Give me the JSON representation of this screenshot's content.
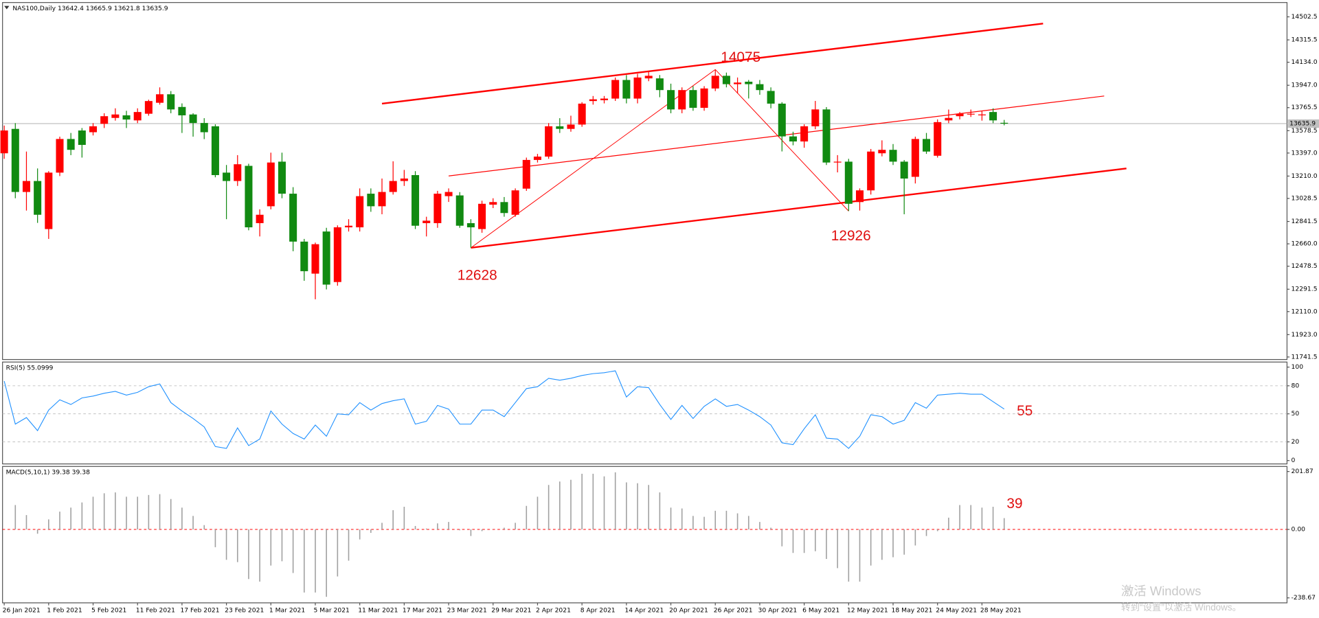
{
  "chart_data": [
    {
      "type": "candlestick",
      "title": "NAS100,Daily  13642.4 13665.9 13621.8 13635.9",
      "open": [
        13395,
        13593,
        13081,
        13170,
        12780,
        13238,
        13511,
        13580,
        13566,
        13634,
        13682,
        13703,
        13662,
        13716,
        13805,
        13874,
        13771,
        13710,
        13641,
        13614,
        13238,
        13170,
        13293,
        12828,
        12965,
        13327,
        13067,
        12678,
        12418,
        12760,
        12350,
        12794,
        12794,
        13067,
        12965,
        13081,
        13170,
        13218,
        12828,
        12828,
        13047,
        13053,
        12828,
        12780,
        12978,
        12999,
        12896,
        13108,
        13341,
        13368,
        13614,
        13593,
        13628,
        13819,
        13826,
        13839,
        13990,
        13839,
        14003,
        14003,
        13908,
        13751,
        13908,
        13764,
        13921,
        14024,
        13956,
        13976,
        13956,
        13901,
        13798,
        13532,
        13491,
        13614,
        13751,
        13320,
        13327,
        12999,
        13094,
        13395,
        13423,
        13327,
        13204,
        13511,
        13375,
        13662,
        13696,
        13710,
        13703,
        13730,
        13642.4
      ],
      "high": [
        13620,
        13640,
        13409,
        13272,
        13250,
        13530,
        13560,
        13600,
        13640,
        13720,
        13760,
        13740,
        13760,
        13830,
        13930,
        13900,
        13800,
        13720,
        13680,
        13630,
        13300,
        13380,
        13310,
        12940,
        13400,
        13400,
        13120,
        12700,
        12670,
        12790,
        12810,
        12860,
        13110,
        13110,
        13190,
        13330,
        13260,
        13250,
        12880,
        13090,
        13110,
        13080,
        12860,
        13010,
        13030,
        13040,
        13110,
        13360,
        13390,
        13640,
        13680,
        13700,
        13810,
        13860,
        13860,
        14010,
        14030,
        14040,
        14060,
        14030,
        13960,
        13930,
        13940,
        13940,
        14075,
        14050,
        14010,
        13990,
        13990,
        13930,
        13810,
        13570,
        13630,
        13820,
        13770,
        13380,
        13350,
        13110,
        13430,
        13500,
        13470,
        13340,
        13530,
        13560,
        13670,
        13750,
        13730,
        13750,
        13740,
        13760,
        13665.9
      ],
      "low": [
        13350,
        13030,
        12930,
        12830,
        12700,
        13210,
        13380,
        13360,
        13540,
        13600,
        13660,
        13600,
        13640,
        13700,
        13790,
        13720,
        13560,
        13530,
        13510,
        13200,
        12860,
        13130,
        12770,
        12720,
        12940,
        13030,
        12600,
        12360,
        12210,
        12290,
        12320,
        12760,
        12760,
        12920,
        12900,
        13060,
        13130,
        12780,
        12720,
        12790,
        13000,
        12790,
        12628,
        12750,
        12950,
        12880,
        12880,
        13090,
        13320,
        13350,
        13560,
        13570,
        13610,
        13790,
        13800,
        13820,
        13800,
        13800,
        13980,
        13850,
        13720,
        13720,
        13740,
        13740,
        13900,
        13930,
        13880,
        13840,
        13870,
        13760,
        13410,
        13460,
        13440,
        13590,
        13300,
        13240,
        12926,
        12930,
        13060,
        13370,
        13300,
        12900,
        13150,
        13390,
        13360,
        13640,
        13670,
        13690,
        13660,
        13640,
        13621.8
      ],
      "close": [
        13580,
        13081,
        13170,
        12896,
        13238,
        13511,
        13423,
        13463,
        13614,
        13696,
        13710,
        13669,
        13730,
        13819,
        13874,
        13751,
        13703,
        13641,
        13566,
        13218,
        13170,
        13306,
        12794,
        12896,
        13320,
        13067,
        12678,
        12438,
        12657,
        12329,
        12794,
        12807,
        13047,
        12965,
        13081,
        13170,
        13190,
        12807,
        12848,
        13067,
        13081,
        12807,
        12794,
        12985,
        12999,
        12910,
        13094,
        13341,
        13368,
        13614,
        13593,
        13628,
        13798,
        13833,
        13839,
        13990,
        13839,
        14010,
        14024,
        13908,
        13751,
        13908,
        13764,
        13921,
        14024,
        13956,
        13969,
        13956,
        13908,
        13798,
        13532,
        13491,
        13614,
        13751,
        13320,
        13327,
        12985,
        13094,
        13409,
        13423,
        13327,
        13190,
        13511,
        13409,
        13648,
        13682,
        13716,
        13716,
        13710,
        13662,
        13635.9
      ],
      "up_color": "#ff0000",
      "down_color": "#118a11",
      "ylim": [
        11721,
        14605
      ],
      "yticks": [
        14502.5,
        14315.5,
        {
          "value": 14134,
          "label": "14134.0"
        },
        {
          "value": 13947,
          "label": "13947.0"
        },
        13765.5,
        13578.5,
        {
          "value": 13397,
          "label": "13397.0"
        },
        {
          "value": 13210,
          "label": "13210.0"
        },
        13028.5,
        12841.5,
        {
          "value": 12660,
          "label": "12660.0"
        },
        12478.5,
        12291.5,
        {
          "value": 12110,
          "label": "12110.0"
        },
        {
          "value": 11923,
          "label": "11923.0"
        },
        11741.5
      ],
      "last_price": 13635.9,
      "grid": false,
      "trendlines": [
        {
          "points": [
            [
              34,
              13798
            ],
            [
              93.5,
              14448
            ]
          ],
          "width": 2,
          "color": "#ff0000"
        },
        {
          "points": [
            [
              40,
              13211
            ],
            [
              99,
              13860
            ]
          ],
          "width": 1,
          "color": "#ff0000"
        },
        {
          "points": [
            [
              42,
              12628
            ],
            [
              101,
              13272
            ]
          ],
          "width": 2,
          "color": "#ff0000"
        },
        {
          "points": [
            [
              42,
              12628
            ],
            [
              64,
              14075
            ],
            [
              76,
              12926
            ]
          ],
          "width": 0.8,
          "color": "#ff0000"
        }
      ],
      "annotations": [
        "14075",
        "12628",
        "12926"
      ]
    },
    {
      "type": "line",
      "title": "RSI(5) 55.0999",
      "color": "#1e90ff",
      "values": [
        85,
        39,
        46,
        32,
        54,
        65,
        60,
        67,
        69,
        72,
        74,
        70,
        73,
        79,
        82,
        62,
        53,
        45,
        36,
        15,
        13,
        35,
        16,
        23,
        53,
        39,
        29,
        23,
        38,
        26,
        50,
        49,
        62,
        54,
        61,
        64,
        66,
        39,
        42,
        59,
        55,
        39,
        39,
        54,
        54,
        47,
        62,
        77,
        79,
        88,
        86,
        88,
        91,
        93,
        94,
        96,
        68,
        79,
        78,
        60,
        44,
        59,
        45,
        58,
        66,
        58,
        60,
        54,
        47,
        38,
        19,
        17,
        34,
        49,
        24,
        23,
        13,
        26,
        49,
        47,
        39,
        43,
        62,
        56,
        70,
        71,
        72,
        71,
        71,
        63,
        55.0999
      ],
      "ylim": [
        -3.6,
        104.5
      ],
      "yticks": [
        100,
        80,
        50,
        20,
        0
      ],
      "levels": [
        80,
        50,
        20
      ],
      "annotation": "55"
    },
    {
      "type": "bar",
      "title": "MACD(5,10,1) 39.38 39.38",
      "color": "#a0a0a0",
      "categories": [
        "26 Jan 2021",
        null,
        null,
        null,
        "1 Feb 2021",
        null,
        null,
        null,
        "5 Feb 2021",
        null,
        null,
        null,
        "11 Feb 2021",
        null,
        null,
        null,
        "17 Feb 2021",
        null,
        null,
        null,
        "23 Feb 2021",
        null,
        null,
        null,
        "1 Mar 2021",
        null,
        null,
        null,
        "5 Mar 2021",
        null,
        null,
        null,
        "11 Mar 2021",
        null,
        null,
        null,
        "17 Mar 2021",
        null,
        null,
        null,
        "23 Mar 2021",
        null,
        null,
        null,
        "29 Mar 2021",
        null,
        null,
        null,
        "2 Apr 2021",
        null,
        null,
        null,
        "8 Apr 2021",
        null,
        null,
        null,
        "14 Apr 2021",
        null,
        null,
        null,
        "20 Apr 2021",
        null,
        null,
        null,
        "26 Apr 2021",
        null,
        null,
        null,
        "30 Apr 2021",
        null,
        null,
        null,
        "6 May 2021",
        null,
        null,
        null,
        "12 May 2021",
        null,
        null,
        null,
        "18 May 2021",
        null,
        null,
        null,
        "24 May 2021",
        null,
        null,
        null,
        "28 May 2021",
        null,
        null
      ],
      "values": [
        null,
        85,
        50,
        -15,
        35,
        62,
        76,
        94,
        114,
        126,
        129,
        114,
        114,
        120,
        123,
        106,
        76,
        47,
        15,
        -62,
        -106,
        -114,
        -173,
        -182,
        -126,
        -111,
        -152,
        -220,
        -220,
        -235,
        -164,
        -109,
        -35,
        -12,
        23,
        67,
        79,
        12,
        3,
        21,
        26,
        -3,
        -23,
        -6,
        0.5,
        6,
        23,
        82,
        114,
        155,
        167,
        173,
        194,
        194,
        185,
        199,
        164,
        161,
        155,
        129,
        76,
        73,
        47,
        44,
        65,
        65,
        56,
        47,
        26,
        6,
        -59,
        -82,
        -82,
        -76,
        -103,
        -135,
        -182,
        -182,
        -126,
        -106,
        -97,
        -88,
        -56,
        -23,
        -6,
        41,
        85,
        85,
        76,
        79,
        39.38
      ],
      "ylim": [
        -256,
        216.6
      ],
      "yticks": [
        201.87,
        {
          "value": 0,
          "label": "0.00"
        },
        -238.67
      ],
      "levels": [
        0
      ],
      "level_color": "#ff0000",
      "annotation": "39"
    }
  ],
  "watermark": {
    "title": "激活 Windows",
    "subtitle": "转到“设置”以激活 Windows。"
  }
}
